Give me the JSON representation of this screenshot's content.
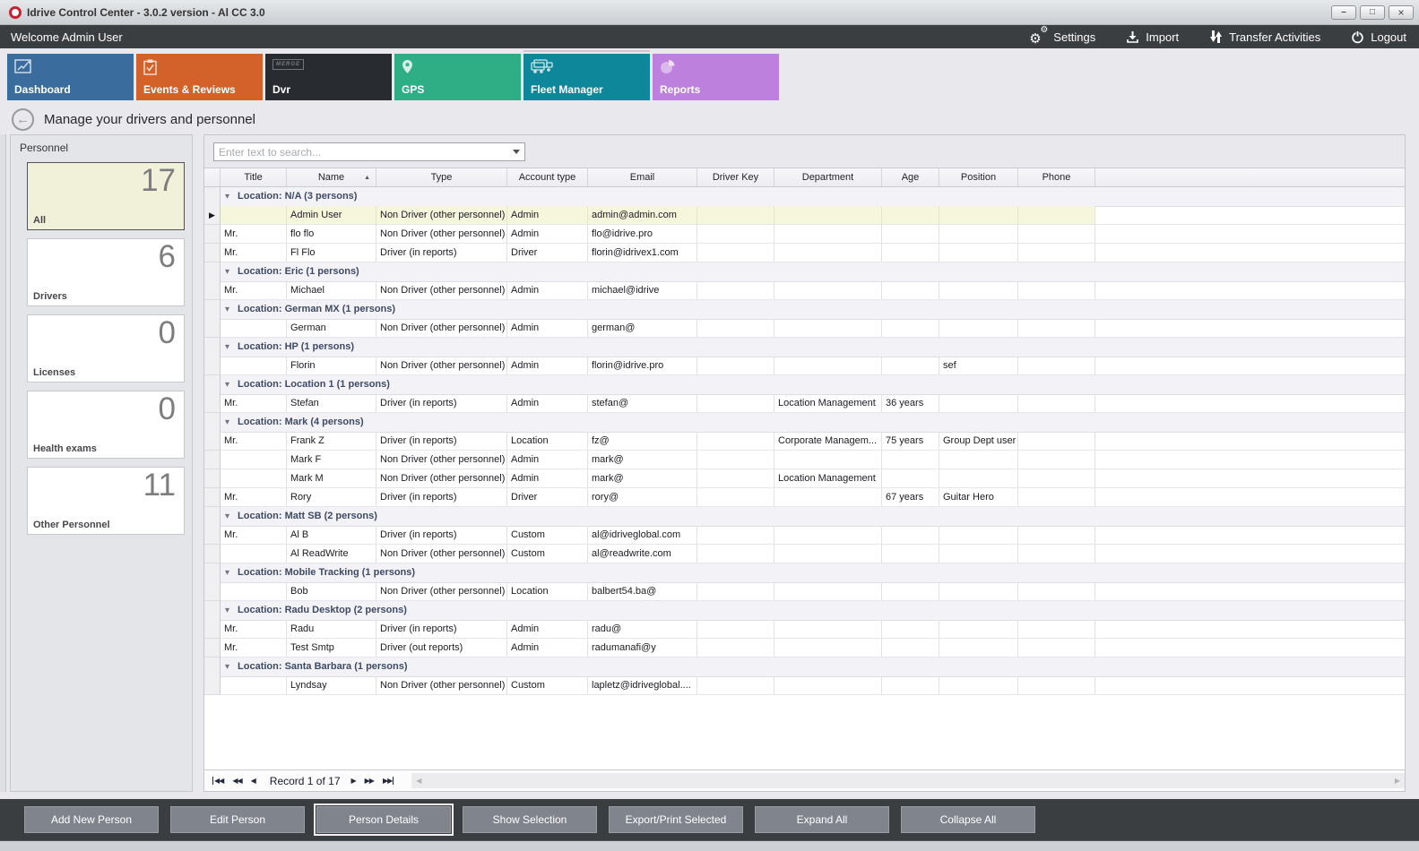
{
  "window": {
    "title": "Idrive Control Center - 3.0.2 version - Al CC 3.0",
    "controls": [
      "minimize",
      "maximize",
      "close"
    ]
  },
  "toolbar": {
    "welcome": "Welcome Admin User",
    "actions": [
      {
        "label": "Settings",
        "icon": "gears-icon"
      },
      {
        "label": "Import",
        "icon": "import-icon"
      },
      {
        "label": "Transfer Activities",
        "icon": "transfer-arrows-icon"
      },
      {
        "label": "Logout",
        "icon": "power-icon"
      }
    ]
  },
  "tabs": [
    {
      "label": "Dashboard",
      "color": "#3a6d9e",
      "selected": false,
      "icon": "line-chart-icon"
    },
    {
      "label": "Events & Reviews",
      "color": "#d2622a",
      "selected": false,
      "icon": "clipboard-icon"
    },
    {
      "label": "Dvr",
      "color": "#282c31",
      "selected": false,
      "icon": "merge-logo-icon"
    },
    {
      "label": "GPS",
      "color": "#2fae85",
      "selected": false,
      "icon": "map-pin-icon"
    },
    {
      "label": "Fleet Manager",
      "color": "#0e879b",
      "selected": true,
      "icon": "trucks-icon"
    },
    {
      "label": "Reports",
      "color": "#bd80dd",
      "selected": false,
      "icon": "pie-chart-icon"
    }
  ],
  "page": {
    "title": "Manage your drivers and personnel"
  },
  "sidebar": {
    "header": "Personnel",
    "cards": [
      {
        "label": "All",
        "count": 17,
        "selected": true
      },
      {
        "label": "Drivers",
        "count": 6,
        "selected": false
      },
      {
        "label": "Licenses",
        "count": 0,
        "selected": false
      },
      {
        "label": "Health exams",
        "count": 0,
        "selected": false
      },
      {
        "label": "Other Personnel",
        "count": 11,
        "selected": false
      }
    ]
  },
  "search": {
    "placeholder": "Enter text to search..."
  },
  "table": {
    "columns": [
      "Title",
      "Name",
      "Type",
      "Account type",
      "Email",
      "Driver Key",
      "Department",
      "Age",
      "Position",
      "Phone"
    ],
    "sorted_column": "Name",
    "sort_direction": "asc",
    "row_fields": [
      "title",
      "name",
      "type",
      "account",
      "email",
      "driver_key",
      "department",
      "age",
      "position",
      "phone"
    ],
    "groups": [
      {
        "label": "Location: N/A (3 persons)",
        "rows": [
          {
            "title": "",
            "name": "Admin User",
            "type": "Non Driver (other personnel)",
            "account": "Admin",
            "email": "admin@admin.com",
            "selected": true
          },
          {
            "title": "Mr.",
            "name": "flo flo",
            "type": "Non Driver (other personnel)",
            "account": "Admin",
            "email": "flo@idrive.pro"
          },
          {
            "title": "Mr.",
            "name": "Fl Flo",
            "type": "Driver (in reports)",
            "account": "Driver",
            "email": "florin@idrivex1.com"
          }
        ]
      },
      {
        "label": "Location: Eric (1 persons)",
        "rows": [
          {
            "title": "Mr.",
            "name": "Michael",
            "type": "Non Driver (other personnel)",
            "account": "Admin",
            "email": "michael@idrive"
          }
        ]
      },
      {
        "label": "Location: German MX (1 persons)",
        "rows": [
          {
            "title": "",
            "name": "German",
            "type": "Non Driver (other personnel)",
            "account": "Admin",
            "email": "german@"
          }
        ]
      },
      {
        "label": "Location: HP (1 persons)",
        "rows": [
          {
            "title": "",
            "name": "Florin",
            "type": "Non Driver (other personnel)",
            "account": "Admin",
            "email": "florin@idrive.pro",
            "position": "sef"
          }
        ]
      },
      {
        "label": "Location: Location 1 (1 persons)",
        "rows": [
          {
            "title": "Mr.",
            "name": "Stefan",
            "type": "Driver (in reports)",
            "account": "Admin",
            "email": "stefan@",
            "department": "Location Management",
            "age": "36 years"
          }
        ]
      },
      {
        "label": "Location: Mark (4 persons)",
        "rows": [
          {
            "title": "Mr.",
            "name": "Frank Z",
            "type": "Driver (in reports)",
            "account": "Location",
            "email": "fz@",
            "department": "Corporate Managem...",
            "age": "75 years",
            "position": "Group Dept user"
          },
          {
            "title": "",
            "name": "Mark F",
            "type": "Non Driver (other personnel)",
            "account": "Admin",
            "email": "mark@"
          },
          {
            "title": "",
            "name": "Mark M",
            "type": "Non Driver (other personnel)",
            "account": "Admin",
            "email": "mark@",
            "department": "Location Management"
          },
          {
            "title": "Mr.",
            "name": "Rory",
            "type": "Driver (in reports)",
            "account": "Driver",
            "email": "rory@",
            "age": "67 years",
            "position": "Guitar Hero"
          }
        ]
      },
      {
        "label": "Location: Matt SB (2 persons)",
        "rows": [
          {
            "title": "Mr.",
            "name": "Al B",
            "type": "Driver (in reports)",
            "account": "Custom",
            "email": "al@idriveglobal.com"
          },
          {
            "title": "",
            "name": "Al ReadWrite",
            "type": "Non Driver (other personnel)",
            "account": "Custom",
            "email": "al@readwrite.com"
          }
        ]
      },
      {
        "label": "Location: Mobile Tracking (1 persons)",
        "rows": [
          {
            "title": "",
            "name": "Bob",
            "type": "Non Driver (other personnel)",
            "account": "Location",
            "email": "balbert54.ba@"
          }
        ]
      },
      {
        "label": "Location: Radu Desktop (2 persons)",
        "rows": [
          {
            "title": "Mr.",
            "name": "Radu",
            "type": "Driver (in reports)",
            "account": "Admin",
            "email": "radu@"
          },
          {
            "title": "Mr.",
            "name": "Test Smtp",
            "type": "Driver (out reports)",
            "account": "Admin",
            "email": "radumanafi@y"
          }
        ]
      },
      {
        "label": "Location: Santa Barbara (1 persons)",
        "rows": [
          {
            "title": "",
            "name": "Lyndsay",
            "type": "Non Driver (other personnel)",
            "account": "Custom",
            "email": "lapletz@idriveglobal...."
          }
        ]
      }
    ]
  },
  "record_nav": {
    "text": "Record 1 of 17"
  },
  "footer": {
    "buttons": [
      {
        "label": "Add New Person",
        "focused": false
      },
      {
        "label": "Edit Person",
        "focused": false
      },
      {
        "label": "Person Details",
        "focused": true
      },
      {
        "label": "Show Selection",
        "focused": false
      },
      {
        "label": "Export/Print Selected",
        "focused": false
      },
      {
        "label": "Expand All",
        "focused": false
      },
      {
        "label": "Collapse All",
        "focused": false
      }
    ]
  },
  "colors": {
    "selected_row": "#f6f6dd",
    "selected_card": "#f1f1d9",
    "dark_bar": "#3b3e41",
    "app_logo_red": "#c32430"
  }
}
